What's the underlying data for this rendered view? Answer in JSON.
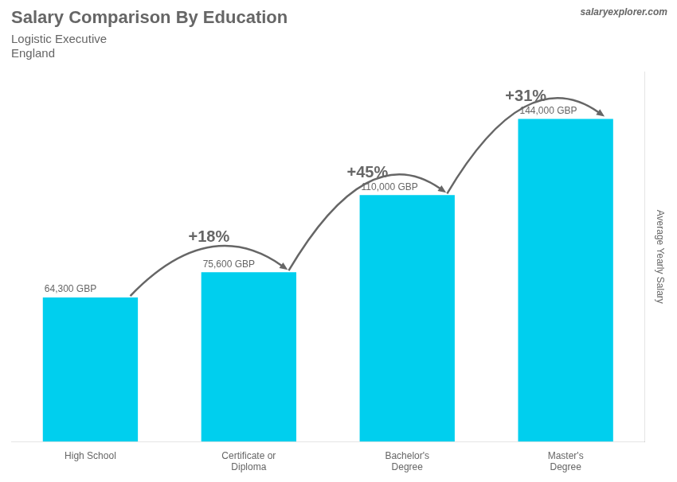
{
  "chart_data": {
    "type": "bar",
    "title": "Salary Comparison By Education",
    "subtitle": [
      "Logistic Executive",
      "England"
    ],
    "source": "salaryexplorer.com",
    "ylabel": "Average Yearly Salary",
    "categories": [
      "High School",
      "Certificate or\nDiploma",
      "Bachelor's\nDegree",
      "Master's\nDegree"
    ],
    "values": [
      64300,
      75600,
      110000,
      144000
    ],
    "value_labels": [
      "64,300 GBP",
      "75,600 GBP",
      "110,000 GBP",
      "144,000 GBP"
    ],
    "data_labels": true,
    "annotations": [
      "+18%",
      "+45%",
      "+31%"
    ],
    "color": "#00CFEE",
    "ylim": [
      0,
      165000
    ],
    "grid": false,
    "tick_labels": "x"
  }
}
